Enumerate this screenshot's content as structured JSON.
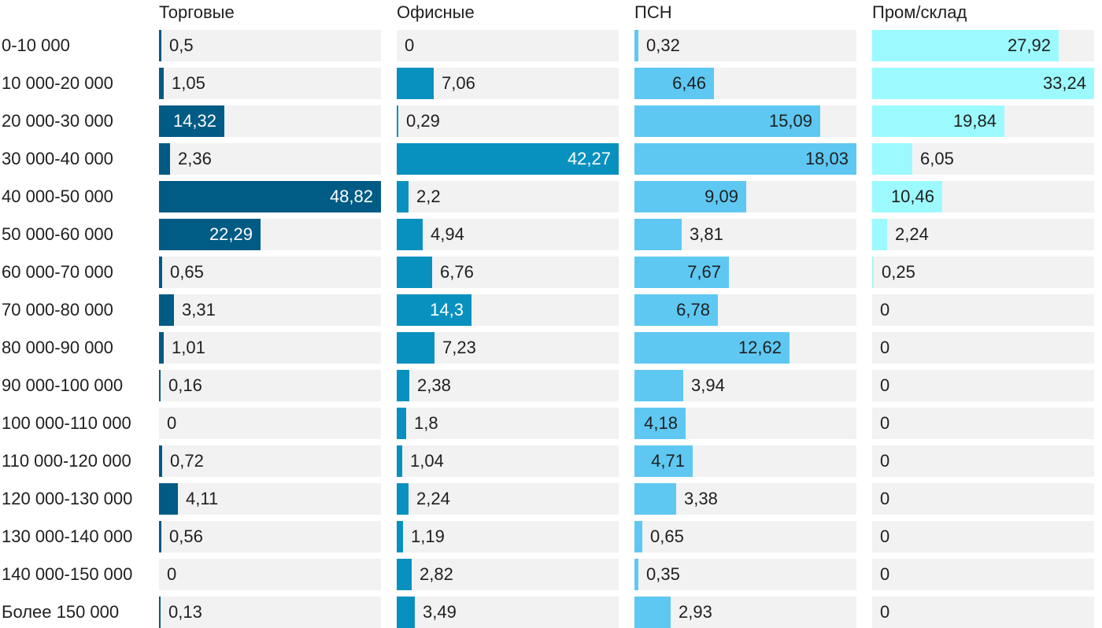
{
  "chart_data": {
    "type": "bar",
    "orientation": "horizontal",
    "layout": "small-multiples",
    "categories": [
      "0-10 000",
      "10 000-20 000",
      "20 000-30 000",
      "30 000-40 000",
      "40 000-50 000",
      "50 000-60 000",
      "60 000-70 000",
      "70 000-80 000",
      "80 000-90 000",
      "90 000-100 000",
      "100 000-110 000",
      "110 000-120 000",
      "120 000-130 000",
      "130 000-140 000",
      "140 000-150 000",
      "Более 150 000"
    ],
    "series": [
      {
        "name": "Торговые",
        "color": "#005b85",
        "values": [
          0.5,
          1.05,
          14.32,
          2.36,
          48.82,
          22.29,
          0.65,
          3.31,
          1.01,
          0.16,
          0,
          0.72,
          4.11,
          0.56,
          0,
          0.13
        ],
        "labels": [
          "0,5",
          "1,05",
          "14,32",
          "2,36",
          "48,82",
          "22,29",
          "0,65",
          "3,31",
          "1,01",
          "0,16",
          "0",
          "0,72",
          "4,11",
          "0,56",
          "0",
          "0,13"
        ]
      },
      {
        "name": "Офисные",
        "color": "#0891bf",
        "values": [
          0,
          7.06,
          0.29,
          42.27,
          2.2,
          4.94,
          6.76,
          14.3,
          7.23,
          2.38,
          1.8,
          1.04,
          2.24,
          1.19,
          2.82,
          3.49
        ],
        "labels": [
          "0",
          "7,06",
          "0,29",
          "42,27",
          "2,2",
          "4,94",
          "6,76",
          "14,3",
          "7,23",
          "2,38",
          "1,8",
          "1,04",
          "2,24",
          "1,19",
          "2,82",
          "3,49"
        ]
      },
      {
        "name": "ПСН",
        "color": "#5ec8f2",
        "values": [
          0.32,
          6.46,
          15.09,
          18.03,
          9.09,
          3.81,
          7.67,
          6.78,
          12.62,
          3.94,
          4.18,
          4.71,
          3.38,
          0.65,
          0.35,
          2.93
        ],
        "labels": [
          "0,32",
          "6,46",
          "15,09",
          "18,03",
          "9,09",
          "3,81",
          "7,67",
          "6,78",
          "12,62",
          "3,94",
          "4,18",
          "4,71",
          "3,38",
          "0,65",
          "0,35",
          "2,93"
        ]
      },
      {
        "name": "Пром/склад",
        "color": "#9cfaff",
        "values": [
          27.92,
          33.24,
          19.84,
          6.05,
          10.46,
          2.24,
          0.25,
          0,
          0,
          0,
          0,
          0,
          0,
          0,
          0,
          0
        ],
        "labels": [
          "27,92",
          "33,24",
          "19,84",
          "6,05",
          "10,46",
          "2,24",
          "0,25",
          "0",
          "0",
          "0",
          "0",
          "0",
          "0",
          "0",
          "0",
          "0"
        ]
      }
    ],
    "grid": false,
    "legend": "none"
  }
}
